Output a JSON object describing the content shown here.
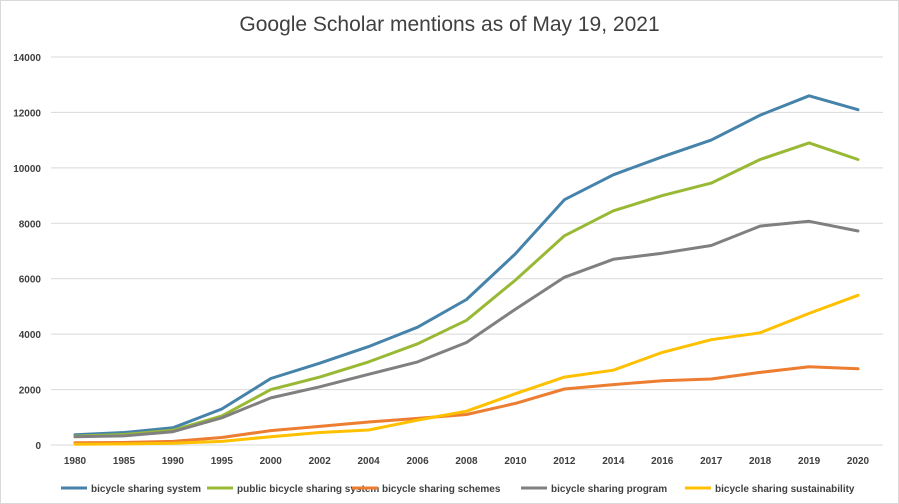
{
  "chart_data": {
    "type": "line",
    "title": "Google Scholar mentions as of May 19, 2021",
    "xlabel": "",
    "ylabel": "",
    "ylim": [
      0,
      14000
    ],
    "y_ticks": [
      "0",
      "2000",
      "4000",
      "6000",
      "8000",
      "10000",
      "12000",
      "14000"
    ],
    "y_tick_values": [
      0,
      2000,
      4000,
      6000,
      8000,
      10000,
      12000,
      14000
    ],
    "grid": true,
    "legend_position": "bottom",
    "categories": [
      "1980",
      "1985",
      "1990",
      "1995",
      "2000",
      "2002",
      "2004",
      "2006",
      "2008",
      "2010",
      "2012",
      "2014",
      "2016",
      "2017",
      "2018",
      "2019",
      "2020"
    ],
    "series": [
      {
        "name": "bicycle sharing system",
        "color": "#4683aa",
        "values": [
          370,
          450,
          620,
          1300,
          2400,
          2950,
          3550,
          4250,
          5250,
          6900,
          8850,
          9750,
          10400,
          11000,
          11900,
          12600,
          12100
        ]
      },
      {
        "name": "public bicycle sharing system",
        "color": "#99b935",
        "values": [
          320,
          380,
          530,
          1050,
          2000,
          2450,
          3000,
          3650,
          4500,
          5950,
          7550,
          8450,
          9000,
          9450,
          10300,
          10900,
          10300
        ]
      },
      {
        "name": "bicycle sharing schemes",
        "color": "#ed7d31",
        "values": [
          80,
          90,
          130,
          270,
          520,
          670,
          830,
          960,
          1100,
          1500,
          2020,
          2180,
          2320,
          2380,
          2620,
          2820,
          2750
        ]
      },
      {
        "name": "bicycle sharing program",
        "color": "#808080",
        "values": [
          300,
          330,
          480,
          980,
          1700,
          2100,
          2550,
          3000,
          3700,
          4900,
          6050,
          6700,
          6920,
          7200,
          7900,
          8070,
          7720
        ]
      },
      {
        "name": "bicycle sharing sustainability",
        "color": "#ffc000",
        "values": [
          30,
          40,
          60,
          130,
          300,
          450,
          540,
          900,
          1220,
          1850,
          2450,
          2700,
          3340,
          3800,
          4050,
          4750,
          5400
        ]
      }
    ]
  }
}
